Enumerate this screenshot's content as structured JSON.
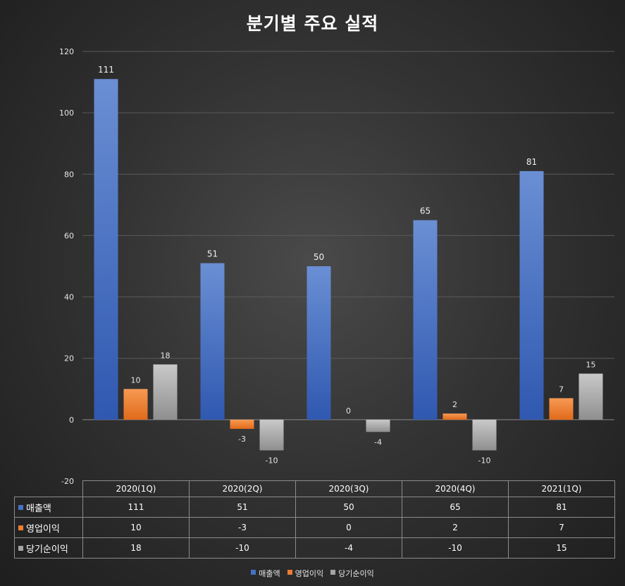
{
  "chart_data": {
    "type": "bar",
    "title": "분기별 주요 실적",
    "xlabel": "",
    "ylabel": "",
    "ylim": [
      -20,
      120
    ],
    "yticks": [
      -20,
      0,
      20,
      40,
      60,
      80,
      100,
      120
    ],
    "grid": true,
    "legend_position": "bottom",
    "data_table": true,
    "categories": [
      "2020(1Q)",
      "2020(2Q)",
      "2020(3Q)",
      "2020(4Q)",
      "2021(1Q)"
    ],
    "series": [
      {
        "name": "매출액",
        "values": [
          111,
          51,
          50,
          65,
          81
        ],
        "color": "#4472c4"
      },
      {
        "name": "영업이익",
        "values": [
          10,
          -3,
          0,
          2,
          7
        ],
        "color": "#ed7d31"
      },
      {
        "name": "당기순이익",
        "values": [
          18,
          -10,
          -4,
          -10,
          15
        ],
        "color": "#a5a5a5"
      }
    ]
  }
}
